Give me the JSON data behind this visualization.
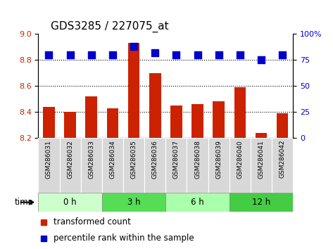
{
  "title": "GDS3285 / 227075_at",
  "samples": [
    "GSM286031",
    "GSM286032",
    "GSM286033",
    "GSM286034",
    "GSM286035",
    "GSM286036",
    "GSM286037",
    "GSM286038",
    "GSM286039",
    "GSM286040",
    "GSM286041",
    "GSM286042"
  ],
  "transformed_count": [
    8.44,
    8.4,
    8.52,
    8.43,
    8.93,
    8.7,
    8.45,
    8.46,
    8.48,
    8.59,
    8.24,
    8.39
  ],
  "percentile_rank": [
    80,
    80,
    80,
    80,
    88,
    82,
    80,
    80,
    80,
    80,
    75,
    80
  ],
  "bar_color": "#cc2200",
  "dot_color": "#0000cc",
  "baseline": 8.2,
  "left_ylim": [
    8.2,
    9.0
  ],
  "right_ylim": [
    0,
    100
  ],
  "left_yticks": [
    8.2,
    8.4,
    8.6,
    8.8,
    9.0
  ],
  "right_yticks": [
    0,
    25,
    50,
    75,
    100
  ],
  "right_yticklabels": [
    "0",
    "25",
    "50",
    "75",
    "100%"
  ],
  "grid_values": [
    8.4,
    8.6,
    8.8
  ],
  "time_groups": [
    {
      "label": "0 h",
      "start": 0,
      "end": 3,
      "color": "#ccffcc"
    },
    {
      "label": "3 h",
      "start": 3,
      "end": 6,
      "color": "#55dd55"
    },
    {
      "label": "6 h",
      "start": 6,
      "end": 9,
      "color": "#aaffaa"
    },
    {
      "label": "12 h",
      "start": 9,
      "end": 12,
      "color": "#44cc44"
    }
  ],
  "time_label": "time",
  "legend_labels": [
    "transformed count",
    "percentile rank within the sample"
  ],
  "legend_colors": [
    "#cc2200",
    "#0000cc"
  ],
  "bar_width": 0.55,
  "dot_size": 50,
  "title_fontsize": 11,
  "tick_fontsize": 8,
  "label_fontsize": 8.5,
  "sample_label_fontsize": 6.5,
  "background_color": "#ffffff",
  "sample_bg_color": "#d8d8d8"
}
